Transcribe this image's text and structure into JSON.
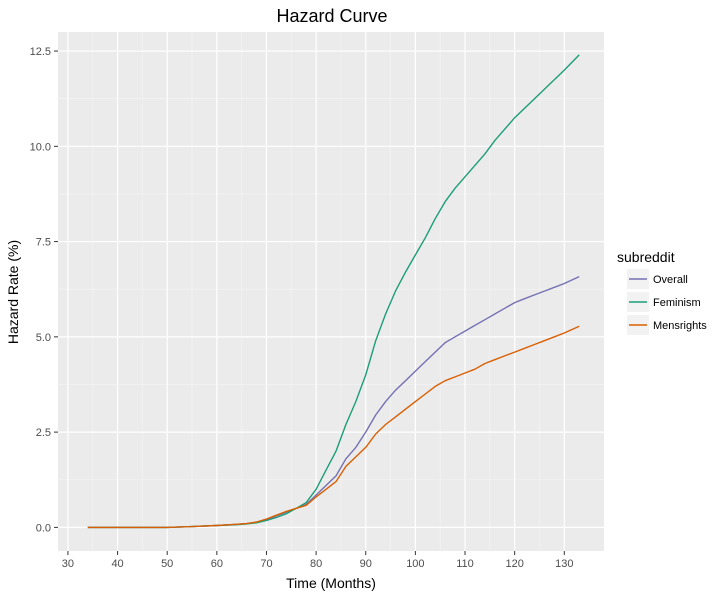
{
  "chart_data": {
    "type": "line",
    "title": "Hazard Curve",
    "xlabel": "Time (Months)",
    "ylabel": "Hazard Rate (%)",
    "xlim": [
      28,
      138
    ],
    "ylim": [
      -0.62,
      13.0
    ],
    "xticks": [
      30,
      40,
      50,
      60,
      70,
      80,
      90,
      100,
      110,
      120,
      130
    ],
    "xtick_labels": [
      "30",
      "40",
      "50",
      "60",
      "70",
      "80",
      "90",
      "100",
      "110",
      "120",
      "130"
    ],
    "yticks": [
      0,
      2.5,
      5,
      7.5,
      10,
      12.5
    ],
    "ytick_labels": [
      "0.0",
      "2.5",
      "5.0",
      "7.5",
      "10.0",
      "12.5"
    ],
    "grid": true,
    "legend": {
      "title": "subreddit",
      "position": "right"
    },
    "series": [
      {
        "name": "Overall",
        "color": "#7570b3",
        "x": [
          34,
          40,
          45,
          50,
          55,
          60,
          64,
          66,
          68,
          70,
          72,
          74,
          76,
          78,
          80,
          82,
          84,
          86,
          88,
          90,
          92,
          94,
          96,
          98,
          100,
          102,
          104,
          106,
          108,
          110,
          112,
          114,
          116,
          118,
          120,
          122,
          124,
          126,
          128,
          130,
          133
        ],
        "y": [
          0,
          0,
          0,
          0,
          0.02,
          0.05,
          0.08,
          0.1,
          0.13,
          0.2,
          0.3,
          0.4,
          0.5,
          0.6,
          0.85,
          1.1,
          1.35,
          1.8,
          2.1,
          2.5,
          2.95,
          3.3,
          3.6,
          3.85,
          4.1,
          4.35,
          4.6,
          4.85,
          5.0,
          5.15,
          5.3,
          5.45,
          5.6,
          5.75,
          5.9,
          6.0,
          6.1,
          6.2,
          6.3,
          6.4,
          6.58
        ]
      },
      {
        "name": "Feminism",
        "color": "#1b9e77",
        "x": [
          34,
          40,
          45,
          50,
          55,
          60,
          64,
          66,
          68,
          70,
          72,
          74,
          76,
          78,
          80,
          82,
          84,
          86,
          88,
          90,
          92,
          94,
          96,
          98,
          100,
          102,
          104,
          106,
          108,
          110,
          112,
          114,
          116,
          118,
          120,
          122,
          124,
          126,
          128,
          130,
          133
        ],
        "y": [
          0,
          0,
          0,
          0,
          0.02,
          0.05,
          0.07,
          0.09,
          0.12,
          0.18,
          0.26,
          0.36,
          0.5,
          0.65,
          1.0,
          1.5,
          2.0,
          2.7,
          3.3,
          4.0,
          4.9,
          5.6,
          6.2,
          6.7,
          7.15,
          7.6,
          8.1,
          8.55,
          8.9,
          9.2,
          9.5,
          9.8,
          10.15,
          10.45,
          10.75,
          11.0,
          11.25,
          11.5,
          11.75,
          12.0,
          12.4
        ]
      },
      {
        "name": "Mensrights",
        "color": "#d95f02",
        "x": [
          34,
          40,
          45,
          50,
          55,
          60,
          64,
          66,
          68,
          70,
          72,
          74,
          76,
          78,
          80,
          82,
          84,
          86,
          88,
          90,
          92,
          94,
          96,
          98,
          100,
          102,
          104,
          106,
          108,
          110,
          112,
          114,
          116,
          118,
          120,
          122,
          124,
          126,
          128,
          130,
          133
        ],
        "y": [
          0,
          0,
          0,
          0,
          0.02,
          0.05,
          0.08,
          0.1,
          0.14,
          0.22,
          0.32,
          0.42,
          0.5,
          0.58,
          0.8,
          1.0,
          1.2,
          1.6,
          1.85,
          2.1,
          2.45,
          2.7,
          2.9,
          3.1,
          3.3,
          3.5,
          3.7,
          3.85,
          3.95,
          4.05,
          4.15,
          4.3,
          4.4,
          4.5,
          4.6,
          4.7,
          4.8,
          4.9,
          5.0,
          5.1,
          5.28
        ]
      }
    ]
  }
}
